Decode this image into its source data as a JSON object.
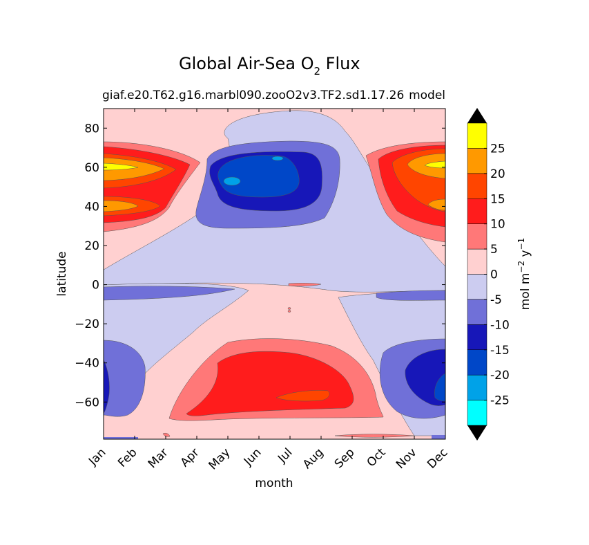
{
  "chart_data": {
    "type": "heatmap",
    "style": "filled-contour",
    "title_main": "Global Air-Sea O",
    "title_sub": "2",
    "title_tail": " Flux",
    "subtitle_left": "giaf.e20.T62.g16.marbl090.zooO2v3.TF2.sd1.17.26",
    "subtitle_right": "model",
    "xlabel": "month",
    "ylabel": "latitude",
    "x_categories": [
      "Jan",
      "Feb",
      "Mar",
      "Apr",
      "May",
      "Jun",
      "Jul",
      "Aug",
      "Sep",
      "Oct",
      "Nov",
      "Dec"
    ],
    "y_ticks": [
      80,
      60,
      40,
      20,
      0,
      -20,
      -40,
      -60
    ],
    "y_tick_labels": [
      "80",
      "60",
      "40",
      "20",
      "0",
      "−20",
      "−40",
      "−60"
    ],
    "ylim": [
      -79,
      90
    ],
    "colorbar": {
      "label": "mol m",
      "label_exp1": "−2",
      "label_mid": " y",
      "label_exp2": "−1",
      "levels": [
        -30,
        -25,
        -20,
        -15,
        -10,
        -5,
        0,
        5,
        10,
        15,
        20,
        25,
        30
      ],
      "tick_values": [
        25,
        20,
        15,
        10,
        5,
        0,
        -5,
        -10,
        -15,
        -20,
        -25
      ],
      "tick_labels": [
        "25",
        "20",
        "15",
        "10",
        "5",
        "0",
        "-5",
        "-10",
        "-15",
        "-20",
        "-25"
      ],
      "colors": [
        "#00ffff",
        "#00a2e8",
        "#0047c8",
        "#1717b8",
        "#7070d8",
        "#ccccf0",
        "#ffd0d0",
        "#ff7878",
        "#ff1c1c",
        "#ff4500",
        "#ff9900",
        "#ffff00"
      ],
      "extend_low_color": "#000000",
      "extend_high_color": "#000000"
    },
    "regions": [
      {
        "name": "se-pink-band",
        "color": "#ffd0d0"
      },
      {
        "name": "nh-winter-pink",
        "color": "#ffd0d0"
      },
      {
        "name": "nh-summer-blue",
        "color": "#7070d8"
      },
      {
        "name": "sh-winter-blue",
        "color": "#7070d8"
      },
      {
        "name": "sh-summer-red",
        "color": "#ff1c1c"
      }
    ]
  }
}
